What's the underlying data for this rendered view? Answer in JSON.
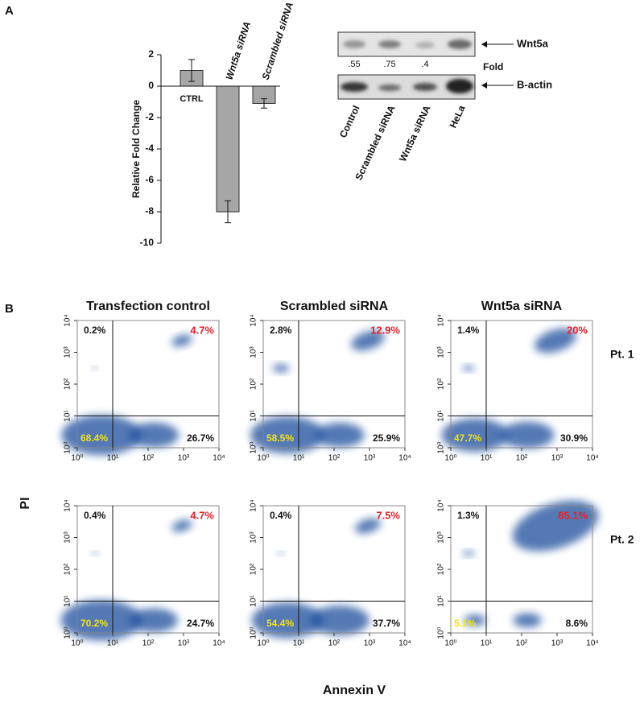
{
  "panel_labels": [
    "A",
    "B"
  ],
  "blot": {
    "bands": [
      "Wnt5a",
      "B-actin"
    ],
    "lanes": [
      "Control",
      "Scrambled siRNA",
      "Wnt5a siRNA",
      "HeLa"
    ],
    "fold": {
      "label": "Fold",
      "values": [
        0.55,
        0.75,
        0.4
      ],
      "value_labels": [
        ".55",
        ".75",
        ".4"
      ]
    }
  },
  "flow": {
    "columns": [
      "Transfection control",
      "Scrambled siRNA",
      "Wnt5a siRNA"
    ],
    "rows": [
      "Pt. 1",
      "Pt. 2"
    ],
    "xlabel": "Annexin V",
    "ylabel": "PI"
  },
  "chart_data": [
    {
      "type": "bar",
      "ylabel": "Relative Fold Change",
      "categories": [
        "CTRL",
        "Wnt5a siRNA",
        "Scrambled siRNA"
      ],
      "values": [
        1,
        -8,
        -1.1
      ],
      "errors": [
        0.7,
        0.7,
        0.3
      ],
      "color": "#a6a6a6",
      "ylim": [
        -10,
        2
      ],
      "yticks": [
        -10,
        -8,
        -6,
        -4,
        -2,
        0,
        2
      ]
    },
    {
      "type": "quadrant",
      "log": true,
      "xlim": [
        1,
        10000
      ],
      "ylim": [
        1,
        10000
      ],
      "gates": [
        10,
        10
      ],
      "color": "#1f4e9c",
      "xticks": [
        {
          "value": 1,
          "label": "10⁰"
        },
        {
          "value": 10,
          "label": "10¹"
        },
        {
          "value": 100,
          "label": "10²"
        },
        {
          "value": 1000,
          "label": "10³"
        },
        {
          "value": 10000,
          "label": "10⁴"
        }
      ],
      "yticks": [
        {
          "value": 1,
          "label": "10⁰"
        },
        {
          "value": 10,
          "label": "10¹"
        },
        {
          "value": 100,
          "label": "10²"
        },
        {
          "value": 1000,
          "label": "10³"
        },
        {
          "value": 10000,
          "label": "10⁴"
        }
      ],
      "values": [
        0.2,
        4.7,
        68.4,
        26.7
      ],
      "value_labels": [
        "0.2%",
        "4.7%",
        "68.4%",
        "26.7%"
      ]
    },
    {
      "type": "quadrant",
      "log": true,
      "xlim": [
        1,
        10000
      ],
      "ylim": [
        1,
        10000
      ],
      "gates": [
        10,
        10
      ],
      "color": "#1f4e9c",
      "xticks": [
        {
          "value": 1,
          "label": "10⁰"
        },
        {
          "value": 10,
          "label": "10¹"
        },
        {
          "value": 100,
          "label": "10²"
        },
        {
          "value": 1000,
          "label": "10³"
        },
        {
          "value": 10000,
          "label": "10⁴"
        }
      ],
      "yticks": [
        {
          "value": 1,
          "label": "10⁰"
        },
        {
          "value": 10,
          "label": "10¹"
        },
        {
          "value": 100,
          "label": "10²"
        },
        {
          "value": 1000,
          "label": "10³"
        },
        {
          "value": 10000,
          "label": "10⁴"
        }
      ],
      "values": [
        2.8,
        12.9,
        58.5,
        25.9
      ],
      "value_labels": [
        "2.8%",
        "12.9%",
        "58.5%",
        "25.9%"
      ]
    },
    {
      "type": "quadrant",
      "log": true,
      "xlim": [
        1,
        10000
      ],
      "ylim": [
        1,
        10000
      ],
      "gates": [
        10,
        10
      ],
      "color": "#1f4e9c",
      "xticks": [
        {
          "value": 1,
          "label": "10⁰"
        },
        {
          "value": 10,
          "label": "10¹"
        },
        {
          "value": 100,
          "label": "10²"
        },
        {
          "value": 1000,
          "label": "10³"
        },
        {
          "value": 10000,
          "label": "10⁴"
        }
      ],
      "yticks": [
        {
          "value": 1,
          "label": "10⁰"
        },
        {
          "value": 10,
          "label": "10¹"
        },
        {
          "value": 100,
          "label": "10²"
        },
        {
          "value": 1000,
          "label": "10³"
        },
        {
          "value": 10000,
          "label": "10⁴"
        }
      ],
      "values": [
        1.4,
        20,
        47.7,
        30.9
      ],
      "value_labels": [
        "1.4%",
        "20%",
        "47.7%",
        "30.9%"
      ]
    },
    {
      "type": "quadrant",
      "log": true,
      "xlim": [
        1,
        10000
      ],
      "ylim": [
        1,
        10000
      ],
      "gates": [
        10,
        10
      ],
      "color": "#1f4e9c",
      "xticks": [
        {
          "value": 1,
          "label": "10⁰"
        },
        {
          "value": 10,
          "label": "10¹"
        },
        {
          "value": 100,
          "label": "10²"
        },
        {
          "value": 1000,
          "label": "10³"
        },
        {
          "value": 10000,
          "label": "10⁴"
        }
      ],
      "yticks": [
        {
          "value": 1,
          "label": "10⁰"
        },
        {
          "value": 10,
          "label": "10¹"
        },
        {
          "value": 100,
          "label": "10²"
        },
        {
          "value": 1000,
          "label": "10³"
        },
        {
          "value": 10000,
          "label": "10⁴"
        }
      ],
      "values": [
        0.4,
        4.7,
        70.2,
        24.7
      ],
      "value_labels": [
        "0.4%",
        "4.7%",
        "70.2%",
        "24.7%"
      ]
    },
    {
      "type": "quadrant",
      "log": true,
      "xlim": [
        1,
        10000
      ],
      "ylim": [
        1,
        10000
      ],
      "gates": [
        10,
        10
      ],
      "color": "#1f4e9c",
      "xticks": [
        {
          "value": 1,
          "label": "10⁰"
        },
        {
          "value": 10,
          "label": "10¹"
        },
        {
          "value": 100,
          "label": "10²"
        },
        {
          "value": 1000,
          "label": "10³"
        },
        {
          "value": 10000,
          "label": "10⁴"
        }
      ],
      "yticks": [
        {
          "value": 1,
          "label": "10⁰"
        },
        {
          "value": 10,
          "label": "10¹"
        },
        {
          "value": 100,
          "label": "10²"
        },
        {
          "value": 1000,
          "label": "10³"
        },
        {
          "value": 10000,
          "label": "10⁴"
        }
      ],
      "values": [
        0.4,
        7.5,
        54.4,
        37.7
      ],
      "value_labels": [
        "0.4%",
        "7.5%",
        "54.4%",
        "37.7%"
      ]
    },
    {
      "type": "quadrant",
      "log": true,
      "xlim": [
        1,
        10000
      ],
      "ylim": [
        1,
        10000
      ],
      "gates": [
        10,
        10
      ],
      "color": "#1f4e9c",
      "xticks": [
        {
          "value": 1,
          "label": "10⁰"
        },
        {
          "value": 10,
          "label": "10¹"
        },
        {
          "value": 100,
          "label": "10²"
        },
        {
          "value": 1000,
          "label": "10³"
        },
        {
          "value": 10000,
          "label": "10⁴"
        }
      ],
      "yticks": [
        {
          "value": 1,
          "label": "10⁰"
        },
        {
          "value": 10,
          "label": "10¹"
        },
        {
          "value": 100,
          "label": "10²"
        },
        {
          "value": 1000,
          "label": "10³"
        },
        {
          "value": 10000,
          "label": "10⁴"
        }
      ],
      "values": [
        1.3,
        85.1,
        5.1,
        8.6
      ],
      "value_labels": [
        "1.3%",
        "85.1%",
        "5.1%",
        "8.6%"
      ]
    }
  ]
}
